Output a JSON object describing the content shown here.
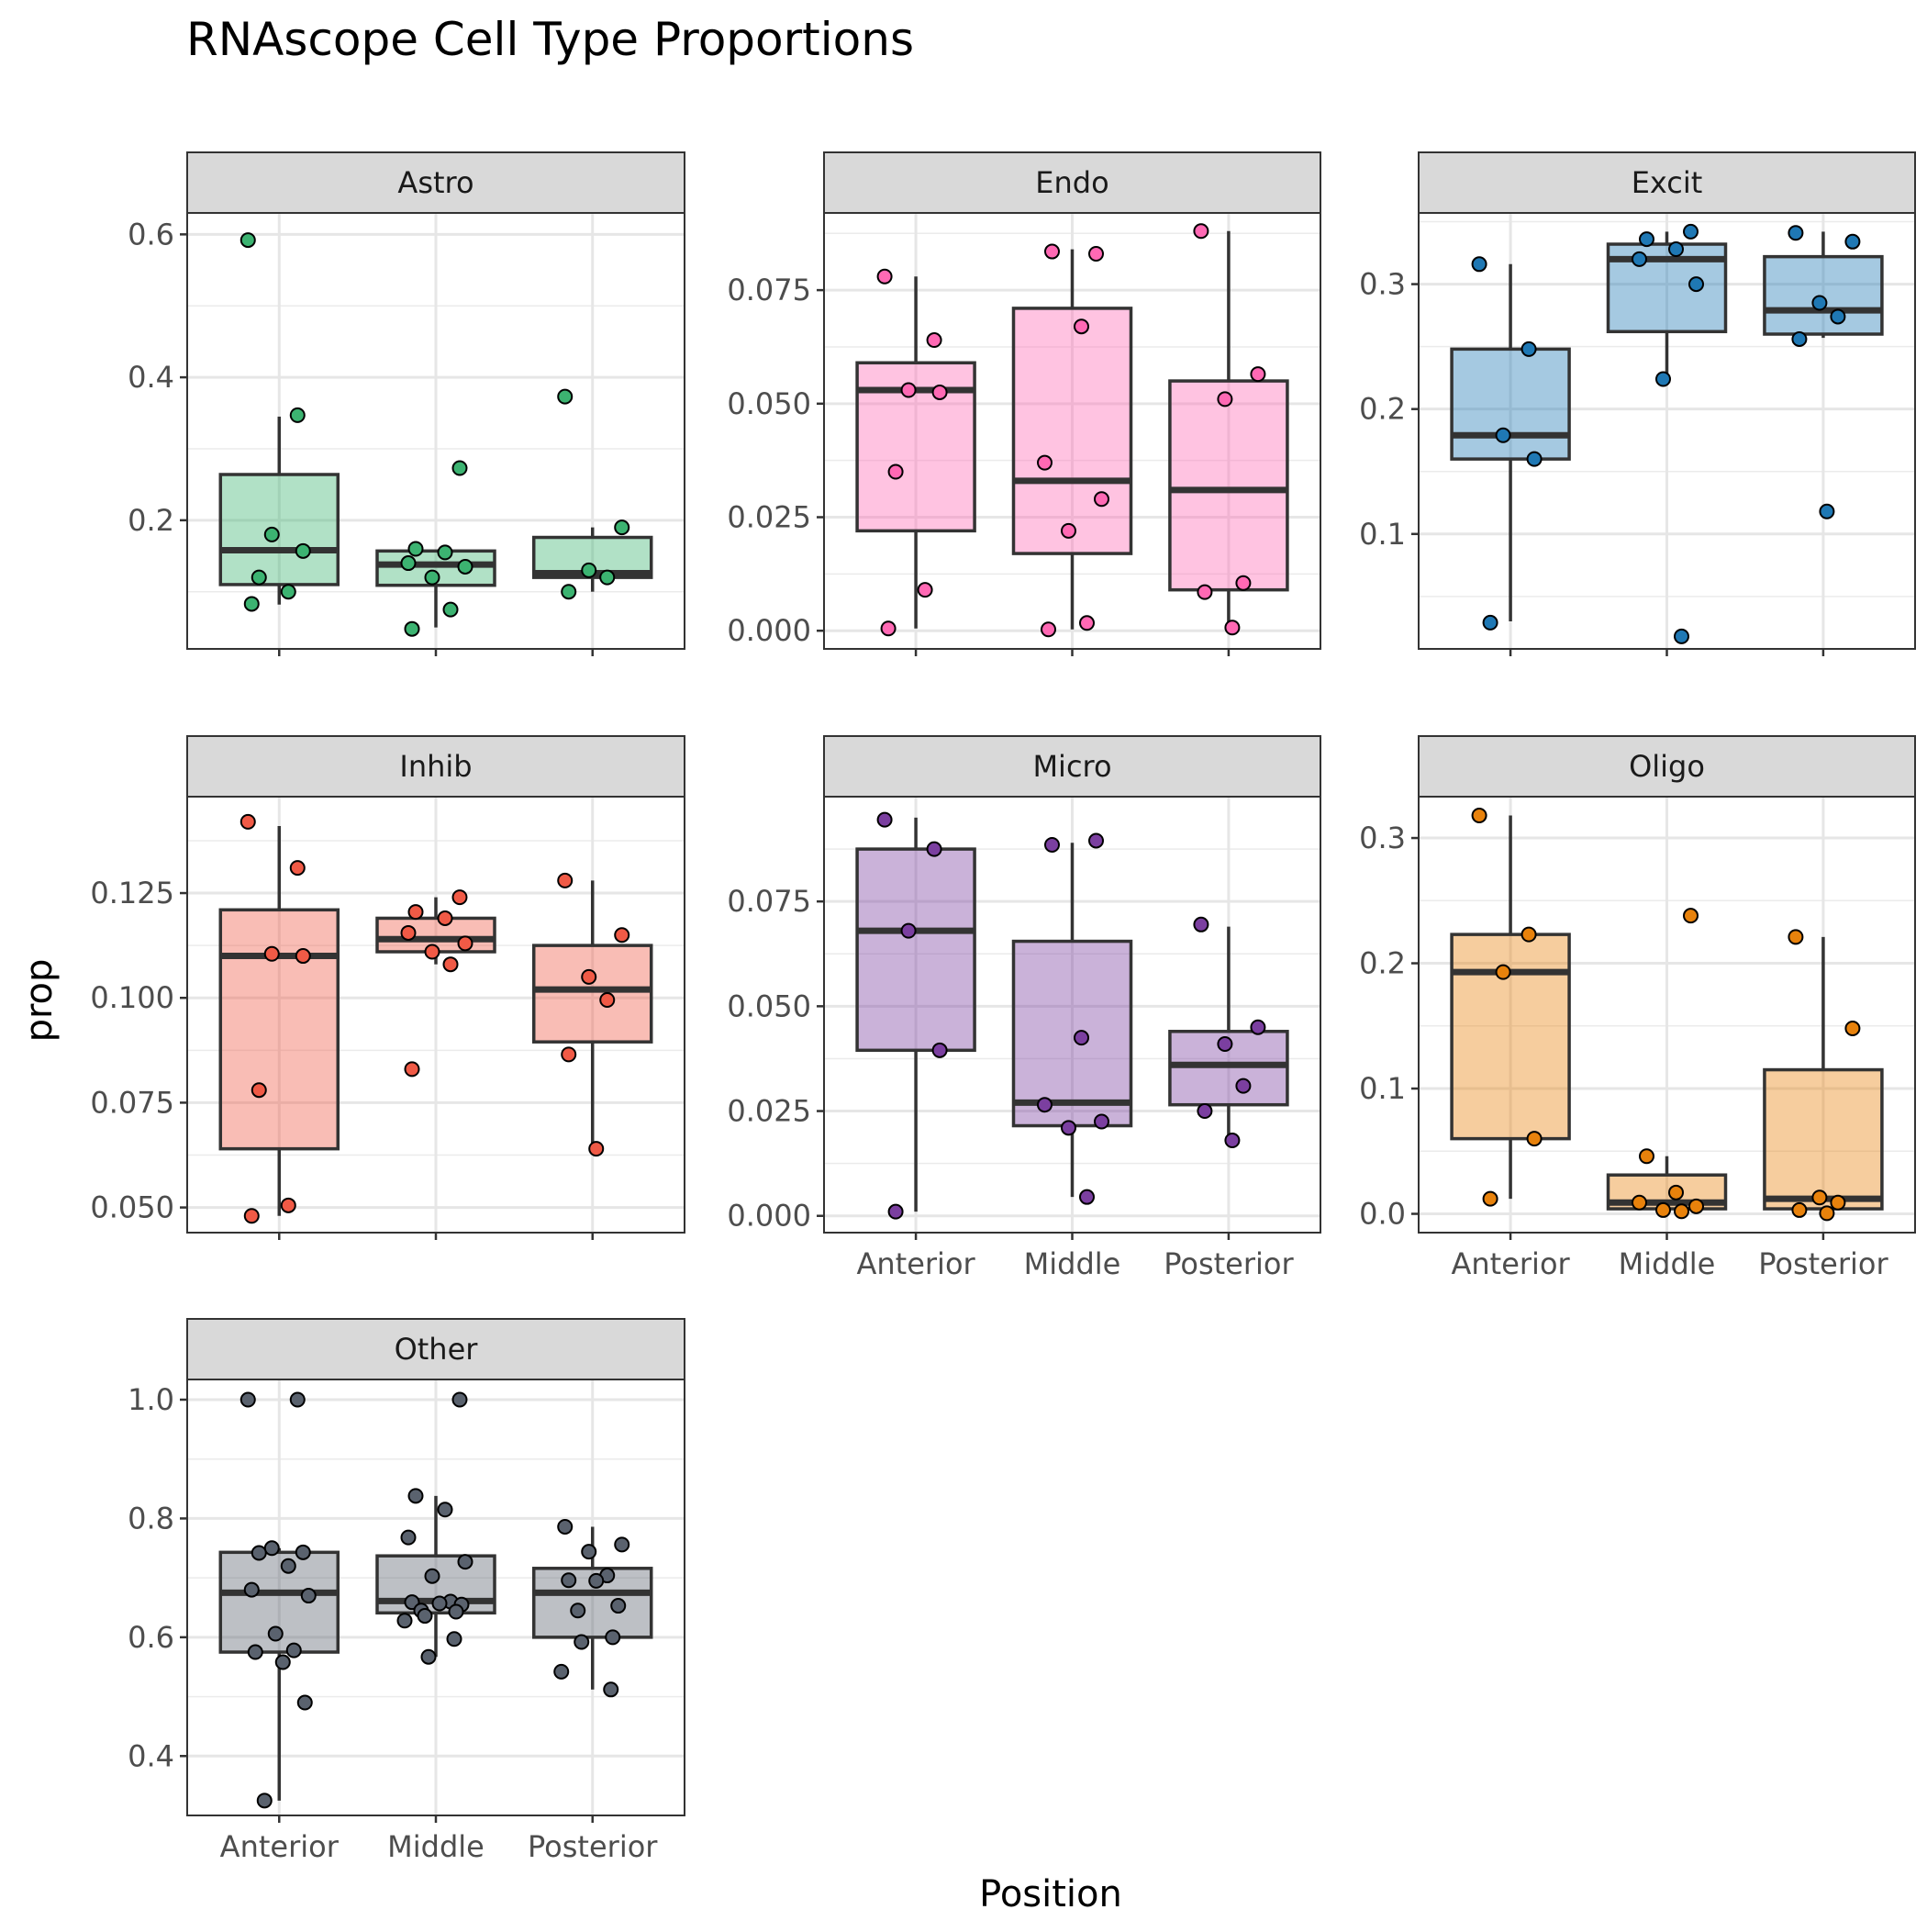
{
  "chart_data": {
    "type": "boxplot",
    "title": "RNAscope Cell Type Proportions",
    "xlabel": "Position",
    "ylabel": "prop",
    "categories": [
      "Anterior",
      "Middle",
      "Posterior"
    ],
    "layout": "facet-wrap-3-columns",
    "grid": true,
    "facets": [
      {
        "name": "Astro",
        "color": "#3CB371",
        "ylim": [
          0.02,
          0.63
        ],
        "yticks": [
          0.2,
          0.4,
          0.6
        ],
        "tick_labels": [
          "0.2",
          "0.4",
          "0.6"
        ],
        "boxes": [
          {
            "q1": 0.11,
            "median": 0.158,
            "q3": 0.264,
            "whisker_low": 0.082,
            "whisker_high": 0.345
          },
          {
            "q1": 0.109,
            "median": 0.138,
            "q3": 0.157,
            "whisker_low": 0.05,
            "whisker_high": 0.157
          },
          {
            "q1": 0.12,
            "median": 0.126,
            "q3": 0.176,
            "whisker_low": 0.1,
            "whisker_high": 0.19
          }
        ],
        "points": [
          [
            0.592,
            0.347,
            0.18,
            0.157,
            0.12,
            0.1,
            0.083
          ],
          [
            0.273,
            0.16,
            0.155,
            0.14,
            0.135,
            0.12,
            0.075,
            0.048
          ],
          [
            0.373,
            0.19,
            0.13,
            0.12,
            0.1
          ]
        ]
      },
      {
        "name": "Endo",
        "color": "#FF69B4",
        "ylim": [
          -0.004,
          0.092
        ],
        "yticks": [
          0.0,
          0.025,
          0.05,
          0.075
        ],
        "tick_labels": [
          "0.000",
          "0.025",
          "0.050",
          "0.075"
        ],
        "boxes": [
          {
            "q1": 0.022,
            "median": 0.053,
            "q3": 0.059,
            "whisker_low": 0.0005,
            "whisker_high": 0.078
          },
          {
            "q1": 0.017,
            "median": 0.033,
            "q3": 0.071,
            "whisker_low": 0.0003,
            "whisker_high": 0.084
          },
          {
            "q1": 0.009,
            "median": 0.031,
            "q3": 0.055,
            "whisker_low": 0.0007,
            "whisker_high": 0.088
          }
        ],
        "points": [
          [
            0.078,
            0.064,
            0.053,
            0.0525,
            0.035,
            0.009,
            0.0005
          ],
          [
            0.083,
            0.0835,
            0.067,
            0.037,
            0.029,
            0.022,
            0.0017,
            0.0003
          ],
          [
            0.088,
            0.0565,
            0.051,
            0.0105,
            0.0085,
            0.0007
          ]
        ]
      },
      {
        "name": "Excit",
        "color": "#1F78B4",
        "ylim": [
          0.008,
          0.357
        ],
        "yticks": [
          0.1,
          0.2,
          0.3
        ],
        "tick_labels": [
          "0.1",
          "0.2",
          "0.3"
        ],
        "boxes": [
          {
            "q1": 0.16,
            "median": 0.179,
            "q3": 0.248,
            "whisker_low": 0.03,
            "whisker_high": 0.316
          },
          {
            "q1": 0.262,
            "median": 0.32,
            "q3": 0.332,
            "whisker_low": 0.224,
            "whisker_high": 0.342
          },
          {
            "q1": 0.26,
            "median": 0.279,
            "q3": 0.322,
            "whisker_low": 0.257,
            "whisker_high": 0.342
          }
        ],
        "points": [
          [
            0.316,
            0.248,
            0.179,
            0.16,
            0.029
          ],
          [
            0.342,
            0.336,
            0.328,
            0.32,
            0.3,
            0.224,
            0.018
          ],
          [
            0.341,
            0.334,
            0.285,
            0.274,
            0.256,
            0.118
          ]
        ]
      },
      {
        "name": "Inhib",
        "color": "#F05A46",
        "ylim": [
          0.044,
          0.148
        ],
        "yticks": [
          0.05,
          0.075,
          0.1,
          0.125
        ],
        "tick_labels": [
          "0.050",
          "0.075",
          "0.100",
          "0.125"
        ],
        "boxes": [
          {
            "q1": 0.064,
            "median": 0.11,
            "q3": 0.121,
            "whisker_low": 0.048,
            "whisker_high": 0.141
          },
          {
            "q1": 0.111,
            "median": 0.114,
            "q3": 0.119,
            "whisker_low": 0.108,
            "whisker_high": 0.124
          },
          {
            "q1": 0.0895,
            "median": 0.102,
            "q3": 0.1125,
            "whisker_low": 0.064,
            "whisker_high": 0.128
          }
        ],
        "points": [
          [
            0.142,
            0.131,
            0.1105,
            0.11,
            0.078,
            0.0505,
            0.048
          ],
          [
            0.124,
            0.1205,
            0.119,
            0.1155,
            0.113,
            0.111,
            0.108,
            0.083
          ],
          [
            0.128,
            0.115,
            0.105,
            0.0995,
            0.0865,
            0.064
          ]
        ]
      },
      {
        "name": "Micro",
        "color": "#7B3FA0",
        "ylim": [
          -0.004,
          0.1
        ],
        "yticks": [
          0.0,
          0.025,
          0.05,
          0.075
        ],
        "tick_labels": [
          "0.000",
          "0.025",
          "0.050",
          "0.075"
        ],
        "boxes": [
          {
            "q1": 0.0395,
            "median": 0.068,
            "q3": 0.0875,
            "whisker_low": 0.001,
            "whisker_high": 0.095
          },
          {
            "q1": 0.0215,
            "median": 0.027,
            "q3": 0.0655,
            "whisker_low": 0.0045,
            "whisker_high": 0.089
          },
          {
            "q1": 0.0265,
            "median": 0.036,
            "q3": 0.044,
            "whisker_low": 0.0185,
            "whisker_high": 0.069
          }
        ],
        "points": [
          [
            0.0945,
            0.0875,
            0.068,
            0.0395,
            0.001
          ],
          [
            0.0895,
            0.0885,
            0.0425,
            0.0265,
            0.0225,
            0.021,
            0.0045
          ],
          [
            0.0695,
            0.045,
            0.041,
            0.031,
            0.025,
            0.018
          ]
        ]
      },
      {
        "name": "Oligo",
        "color": "#E8820C",
        "ylim": [
          -0.015,
          0.333
        ],
        "yticks": [
          0.0,
          0.1,
          0.2,
          0.3
        ],
        "tick_labels": [
          "0.0",
          "0.1",
          "0.2",
          "0.3"
        ],
        "boxes": [
          {
            "q1": 0.06,
            "median": 0.193,
            "q3": 0.223,
            "whisker_low": 0.012,
            "whisker_high": 0.318
          },
          {
            "q1": 0.004,
            "median": 0.009,
            "q3": 0.031,
            "whisker_low": 0.001,
            "whisker_high": 0.046
          },
          {
            "q1": 0.004,
            "median": 0.012,
            "q3": 0.115,
            "whisker_low": 0.0005,
            "whisker_high": 0.221
          }
        ],
        "points": [
          [
            0.318,
            0.223,
            0.193,
            0.06,
            0.012
          ],
          [
            0.238,
            0.046,
            0.017,
            0.009,
            0.006,
            0.003,
            0.002
          ],
          [
            0.221,
            0.148,
            0.013,
            0.009,
            0.003,
            0.0005
          ]
        ]
      },
      {
        "name": "Other",
        "color": "#5A626E",
        "ylim": [
          0.3,
          1.034
        ],
        "yticks": [
          0.4,
          0.6,
          0.8,
          1.0
        ],
        "tick_labels": [
          "0.4",
          "0.6",
          "0.8",
          "1.0"
        ],
        "boxes": [
          {
            "q1": 0.575,
            "median": 0.675,
            "q3": 0.743,
            "whisker_low": 0.325,
            "whisker_high": 0.75
          },
          {
            "q1": 0.641,
            "median": 0.661,
            "q3": 0.737,
            "whisker_low": 0.567,
            "whisker_high": 0.838
          },
          {
            "q1": 0.6,
            "median": 0.675,
            "q3": 0.716,
            "whisker_low": 0.512,
            "whisker_high": 0.786
          }
        ],
        "points": [
          [
            1.0,
            1.0,
            0.75,
            0.743,
            0.742,
            0.72,
            0.68,
            0.67,
            0.606,
            0.578,
            0.575,
            0.558,
            0.49,
            0.325
          ],
          [
            1.0,
            0.838,
            0.815,
            0.768,
            0.727,
            0.703,
            0.66,
            0.659,
            0.657,
            0.655,
            0.645,
            0.643,
            0.636,
            0.628,
            0.597,
            0.567
          ],
          [
            0.786,
            0.756,
            0.744,
            0.704,
            0.696,
            0.695,
            0.653,
            0.645,
            0.6,
            0.592,
            0.542,
            0.512
          ]
        ]
      }
    ]
  }
}
